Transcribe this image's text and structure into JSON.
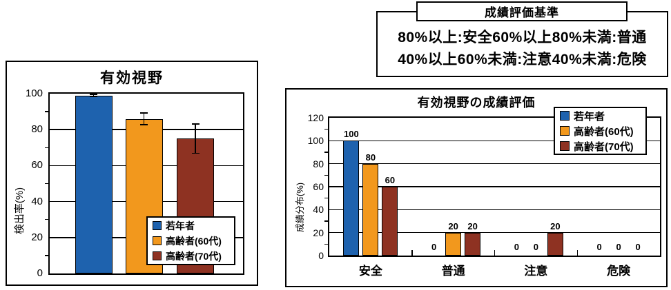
{
  "criteria": {
    "title": "成績評価基準",
    "lines": [
      "80%以上:安全60%以上80%未満:普通",
      "40%以上60%未満:注意40%未満:危険"
    ]
  },
  "colors": {
    "young_blue": "#1E62AE",
    "senior60_orange": "#F2981D",
    "senior70_darkred": "#8E3222",
    "axis_black": "#000000",
    "background_white": "#FFFFFF"
  },
  "chart_data": [
    {
      "id": "effective-visual-field",
      "type": "bar",
      "title": "有効視野",
      "ylabel": "検出率(%)",
      "ylim": [
        0,
        100
      ],
      "ytick_step": 20,
      "minor_tick_step": 10,
      "grid": true,
      "legend_position": "bottom-right",
      "series": [
        {
          "name": "若年者",
          "color": "#1E62AE",
          "value": 99,
          "error": 1
        },
        {
          "name": "高齢者(60代)",
          "color": "#F2981D",
          "value": 86,
          "error": 3.5
        },
        {
          "name": "高齢者(70代)",
          "color": "#8E3222",
          "value": 75,
          "error": 8.5
        }
      ]
    },
    {
      "id": "effective-visual-field-grade",
      "type": "bar",
      "title": "有効視野の成績評価",
      "ylabel": "成績分布(%)",
      "ylim": [
        0,
        120
      ],
      "ytick_step": 20,
      "minor_tick_step": 10,
      "grid": true,
      "legend_position": "top-right",
      "data_labels": true,
      "categories": [
        "安全",
        "普通",
        "注意",
        "危険"
      ],
      "series": [
        {
          "name": "若年者",
          "color": "#1E62AE",
          "values": [
            100,
            0,
            0,
            0
          ]
        },
        {
          "name": "高齢者(60代)",
          "color": "#F2981D",
          "values": [
            80,
            20,
            0,
            0
          ]
        },
        {
          "name": "高齢者(70代)",
          "color": "#8E3222",
          "values": [
            60,
            20,
            20,
            0
          ]
        }
      ]
    }
  ]
}
